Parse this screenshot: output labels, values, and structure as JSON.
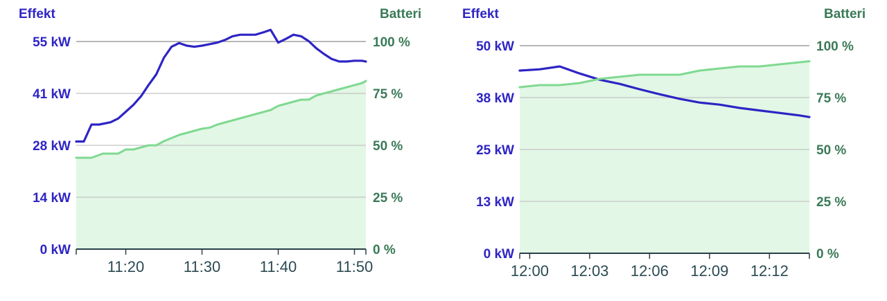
{
  "chart_data": [
    {
      "type": "line",
      "left_axis_title": "Effekt",
      "right_axis_title": "Batteri",
      "left_ylim": [
        0,
        55
      ],
      "right_ylim": [
        0,
        100
      ],
      "left_ticks": [
        "0 kW",
        "14 kW",
        "28 kW",
        "41 kW",
        "55 kW"
      ],
      "right_ticks": [
        "0 %",
        "25 %",
        "50 %",
        "75 %",
        "100 %"
      ],
      "x_unit": "minutes",
      "xlim": [
        13.5,
        51.5
      ],
      "x_ticks": [
        {
          "value": 20,
          "label": "11:20"
        },
        {
          "value": 30,
          "label": "11:30"
        },
        {
          "value": 40,
          "label": "11:40"
        },
        {
          "value": 50,
          "label": "11:50"
        }
      ],
      "series": [
        {
          "name": "Effekt",
          "axis": "left",
          "color": "#2e24c4",
          "fill": false,
          "x": [
            13.5,
            14.5,
            15.5,
            16.5,
            18,
            19,
            20,
            21,
            22,
            23,
            24,
            25,
            26,
            27,
            28,
            29,
            30,
            31,
            32,
            33,
            34,
            35,
            36,
            37,
            38,
            39,
            40,
            41,
            42,
            43,
            44,
            45,
            46,
            47,
            48,
            49,
            50,
            51,
            51.5
          ],
          "y": [
            28.5,
            28.5,
            33,
            33,
            33.6,
            34.6,
            36.4,
            38.2,
            40.5,
            43.5,
            46.3,
            50.7,
            53.6,
            54.6,
            53.9,
            53.6,
            53.9,
            54.3,
            54.7,
            55.4,
            56.4,
            56.8,
            56.8,
            56.8,
            57.4,
            58.1,
            54.7,
            55.7,
            56.8,
            56.4,
            55.1,
            53.2,
            51.7,
            50.4,
            49.7,
            49.7,
            49.9,
            49.9,
            49.7
          ]
        },
        {
          "name": "Batteri",
          "axis": "right",
          "color": "#7fd990",
          "fill": true,
          "fill_color": "#e2f7e6",
          "x": [
            13.5,
            15.5,
            17,
            19,
            20,
            21,
            22,
            23,
            24,
            25,
            26,
            27,
            28,
            29,
            30,
            31,
            32,
            33,
            34,
            35,
            36,
            37,
            38,
            39,
            40,
            41,
            42,
            43,
            44,
            45,
            46,
            47,
            48,
            49,
            50,
            51,
            51.5
          ],
          "y": [
            44,
            44,
            46,
            46,
            48,
            48,
            49,
            50,
            50,
            52,
            53.5,
            55,
            56,
            57,
            58,
            58.5,
            60,
            61,
            62,
            63,
            64,
            65,
            66,
            67,
            69,
            70,
            71,
            72,
            72,
            74,
            75,
            76,
            77,
            78,
            79,
            80,
            81
          ]
        }
      ]
    },
    {
      "type": "line",
      "left_axis_title": "Effekt",
      "right_axis_title": "Batteri",
      "left_ylim": [
        0,
        50
      ],
      "right_ylim": [
        0,
        100
      ],
      "left_ticks": [
        "0 kW",
        "13 kW",
        "25 kW",
        "38 kW",
        "50 kW"
      ],
      "right_ticks": [
        "0 %",
        "25 %",
        "50 %",
        "75 %",
        "100 %"
      ],
      "x_unit": "minutes",
      "xlim": [
        59.5,
        74.0
      ],
      "x_ticks": [
        {
          "value": 60,
          "label": "12:00"
        },
        {
          "value": 63,
          "label": "12:03"
        },
        {
          "value": 66,
          "label": "12:06"
        },
        {
          "value": 69,
          "label": "12:09"
        },
        {
          "value": 72,
          "label": "12:12"
        }
      ],
      "series": [
        {
          "name": "Effekt",
          "axis": "left",
          "color": "#2e24c4",
          "fill": false,
          "x": [
            59.5,
            60.5,
            61.5,
            62.5,
            63.5,
            64.5,
            65.5,
            66.5,
            67.5,
            68.5,
            69.5,
            70.5,
            71.5,
            72.5,
            73.5,
            74.0
          ],
          "y": [
            44,
            44.3,
            45,
            43.3,
            41.8,
            40.8,
            39.5,
            38.3,
            37.2,
            36.3,
            35.8,
            35,
            34.4,
            33.8,
            33.2,
            32.8
          ]
        },
        {
          "name": "Batteri",
          "axis": "right",
          "color": "#7fd990",
          "fill": true,
          "fill_color": "#e2f7e6",
          "x": [
            59.5,
            60.5,
            61.5,
            62.5,
            63.5,
            64.5,
            65.5,
            66.5,
            67.5,
            68.5,
            69.5,
            70.5,
            71.5,
            72.5,
            73.5,
            74.0
          ],
          "y": [
            80,
            81,
            81,
            82,
            84,
            85,
            86,
            86,
            86,
            88,
            89,
            90,
            90,
            91,
            92,
            92.5
          ]
        }
      ]
    }
  ]
}
